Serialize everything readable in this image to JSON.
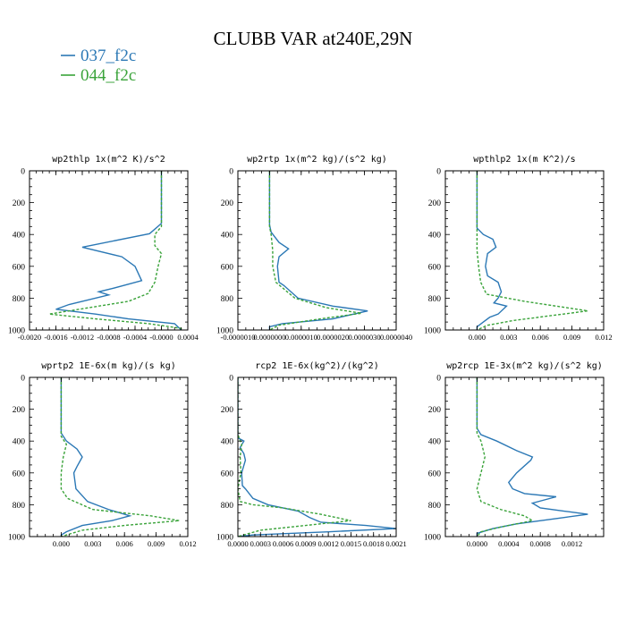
{
  "title": "CLUBB VAR at240E,29N",
  "colors": {
    "blue": "#2b78b5",
    "green": "#3aa33a"
  },
  "legend": [
    {
      "label": "037_f2c",
      "color": "#2b78b5",
      "dash": "solid"
    },
    {
      "label": "044_f2c",
      "color": "#3aa33a",
      "dash": "dashed"
    }
  ],
  "chart_data": [
    {
      "type": "line",
      "title": "wp2thlp  1x(m^2 K)/s^2",
      "xlim": [
        -0.002,
        0.0004
      ],
      "ylim": [
        1000,
        0
      ],
      "xticks": [
        -0.002,
        -0.0016,
        -0.0012,
        -0.0008,
        -0.0004,
        0.0,
        0.0004
      ],
      "xtick_labels": [
        "-0.0020",
        "-0.0016",
        "-0.0012",
        "-0.0008",
        "-0.0004",
        "-0.0000",
        "0.0004"
      ],
      "yticks": [
        0,
        200,
        400,
        600,
        800,
        1000
      ],
      "ytick_labels": [
        "0",
        "200",
        "400",
        "600",
        "800",
        "1000"
      ],
      "series": [
        {
          "name": "037_f2c",
          "points": [
            [
              0,
              0
            ],
            [
              0,
              330
            ],
            [
              -4e-05,
              345
            ],
            [
              -0.00018,
              395
            ],
            [
              -0.0012,
              480
            ],
            [
              -0.0006,
              540
            ],
            [
              -0.0004,
              600
            ],
            [
              -0.0003,
              690
            ],
            [
              -0.00075,
              740
            ],
            [
              -0.00095,
              760
            ],
            [
              -0.0008,
              780
            ],
            [
              -0.0014,
              840
            ],
            [
              -0.0016,
              870
            ],
            [
              -0.001,
              900
            ],
            [
              -0.0005,
              930
            ],
            [
              0.0002,
              960
            ],
            [
              0.0003,
              1000
            ]
          ]
        },
        {
          "name": "044_f2c",
          "points": [
            [
              0,
              0
            ],
            [
              0,
              350
            ],
            [
              -0.0001,
              400
            ],
            [
              -0.0001,
              470
            ],
            [
              0,
              520
            ],
            [
              -5e-05,
              600
            ],
            [
              -0.0001,
              700
            ],
            [
              -0.0002,
              770
            ],
            [
              -0.0005,
              820
            ],
            [
              -0.0011,
              860
            ],
            [
              -0.0017,
              900
            ],
            [
              -0.001,
              930
            ],
            [
              -0.0002,
              960
            ],
            [
              0.0003,
              990
            ],
            [
              0.0003,
              1000
            ]
          ]
        }
      ]
    },
    {
      "type": "line",
      "title": "wp2rtp  1x(m^2 kg)/(s^2 kg)",
      "xlim": [
        -1e-06,
        4e-06
      ],
      "ylim": [
        1000,
        0
      ],
      "xticks": [
        -1e-06,
        0.0,
        1e-06,
        2e-06,
        3e-06,
        4e-06
      ],
      "xtick_labels": [
        "-0.0000010",
        "0.0000000",
        "0.0000010",
        "0.0000020",
        "0.0000030",
        "0.0000040"
      ],
      "yticks": [
        0,
        200,
        400,
        600,
        800,
        1000
      ],
      "ytick_labels": [
        "0",
        "200",
        "400",
        "600",
        "800",
        "1000"
      ],
      "series": [
        {
          "name": "037_f2c",
          "points": [
            [
              0,
              0
            ],
            [
              0,
              340
            ],
            [
              5e-08,
              385
            ],
            [
              3e-07,
              450
            ],
            [
              6e-07,
              490
            ],
            [
              3e-07,
              540
            ],
            [
              2.5e-07,
              600
            ],
            [
              3e-07,
              700
            ],
            [
              4.5e-07,
              720
            ],
            [
              9e-07,
              800
            ],
            [
              2e-06,
              850
            ],
            [
              3.1e-06,
              880
            ],
            [
              2e-06,
              930
            ],
            [
              4e-07,
              960
            ],
            [
              0,
              980
            ],
            [
              0,
              1000
            ]
          ]
        },
        {
          "name": "044_f2c",
          "points": [
            [
              0,
              0
            ],
            [
              0,
              350
            ],
            [
              5e-08,
              400
            ],
            [
              1e-07,
              500
            ],
            [
              1e-07,
              600
            ],
            [
              2e-07,
              700
            ],
            [
              8e-07,
              800
            ],
            [
              1.8e-06,
              860
            ],
            [
              2.9e-06,
              895
            ],
            [
              1.6e-06,
              930
            ],
            [
              3e-07,
              970
            ],
            [
              0,
              1000
            ]
          ]
        }
      ]
    },
    {
      "type": "line",
      "title": "wpthlp2  1x(m K^2)/s",
      "xlim": [
        -0.003,
        0.012
      ],
      "ylim": [
        1000,
        0
      ],
      "xticks": [
        0.0,
        0.003,
        0.006,
        0.009,
        0.012
      ],
      "xtick_labels": [
        "0.000",
        "0.003",
        "0.006",
        "0.009",
        "0.012"
      ],
      "yticks": [
        0,
        200,
        400,
        600,
        800,
        1000
      ],
      "ytick_labels": [
        "0",
        "200",
        "400",
        "600",
        "800",
        "1000"
      ],
      "series": [
        {
          "name": "037_f2c",
          "points": [
            [
              0,
              0
            ],
            [
              0,
              360
            ],
            [
              0.0006,
              400
            ],
            [
              0.0015,
              430
            ],
            [
              0.0018,
              480
            ],
            [
              0.001,
              520
            ],
            [
              0.0008,
              600
            ],
            [
              0.001,
              660
            ],
            [
              0.002,
              700
            ],
            [
              0.0023,
              760
            ],
            [
              0.002,
              800
            ],
            [
              0.0016,
              830
            ],
            [
              0.0028,
              850
            ],
            [
              0.002,
              900
            ],
            [
              0.0012,
              920
            ],
            [
              0.0006,
              950
            ],
            [
              0,
              980
            ],
            [
              0,
              1000
            ]
          ]
        },
        {
          "name": "044_f2c",
          "points": [
            [
              0,
              0
            ],
            [
              0,
              500
            ],
            [
              0.00015,
              600
            ],
            [
              0.00035,
              700
            ],
            [
              0.0009,
              775
            ],
            [
              0.0045,
              820
            ],
            [
              0.0105,
              880
            ],
            [
              0.007,
              910
            ],
            [
              0.0035,
              940
            ],
            [
              0.001,
              970
            ],
            [
              0,
              1000
            ]
          ]
        }
      ]
    },
    {
      "type": "line",
      "title": "wprtp2  1E-6x(m kg)/(s kg)",
      "xlim": [
        -0.003,
        0.012
      ],
      "ylim": [
        1000,
        0
      ],
      "xticks": [
        0.0,
        0.003,
        0.006,
        0.009,
        0.012
      ],
      "xtick_labels": [
        "0.000",
        "0.003",
        "0.006",
        "0.009",
        "0.012"
      ],
      "yticks": [
        0,
        200,
        400,
        600,
        800,
        1000
      ],
      "ytick_labels": [
        "0",
        "200",
        "400",
        "600",
        "800",
        "1000"
      ],
      "series": [
        {
          "name": "037_f2c",
          "points": [
            [
              0,
              0
            ],
            [
              0,
              350
            ],
            [
              0.0005,
              400
            ],
            [
              0.0015,
              450
            ],
            [
              0.002,
              500
            ],
            [
              0.0015,
              560
            ],
            [
              0.0012,
              600
            ],
            [
              0.0014,
              700
            ],
            [
              0.0025,
              780
            ],
            [
              0.0045,
              830
            ],
            [
              0.0065,
              870
            ],
            [
              0.0048,
              900
            ],
            [
              0.002,
              930
            ],
            [
              0.0005,
              970
            ],
            [
              0,
              990
            ],
            [
              0,
              1000
            ]
          ]
        },
        {
          "name": "044_f2c",
          "points": [
            [
              0,
              0
            ],
            [
              0,
              370
            ],
            [
              0.0005,
              420
            ],
            [
              0.0002,
              500
            ],
            [
              0,
              600
            ],
            [
              0,
              700
            ],
            [
              0.0006,
              760
            ],
            [
              0.003,
              830
            ],
            [
              0.0085,
              870
            ],
            [
              0.0112,
              900
            ],
            [
              0.006,
              930
            ],
            [
              0.002,
              960
            ],
            [
              0,
              1000
            ]
          ]
        }
      ]
    },
    {
      "type": "line",
      "title": "rcp2  1E-6x(kg^2)/(kg^2)",
      "xlim": [
        0.0,
        0.0021
      ],
      "ylim": [
        1000,
        0
      ],
      "xticks": [
        0.0,
        0.0003,
        0.0006,
        0.0009,
        0.0012,
        0.0015,
        0.0018,
        0.0021
      ],
      "xtick_labels": [
        "0.0000",
        "0.0003",
        "0.0006",
        "0.0009",
        "0.0012",
        "0.0015",
        "0.0018",
        "0.0021"
      ],
      "yticks": [
        0,
        200,
        400,
        600,
        800,
        1000
      ],
      "ytick_labels": [
        "0",
        "200",
        "400",
        "600",
        "800",
        "1000"
      ],
      "series": [
        {
          "name": "037_f2c",
          "points": [
            [
              0,
              0
            ],
            [
              0,
              380
            ],
            [
              8e-05,
              400
            ],
            [
              3e-05,
              440
            ],
            [
              8e-05,
              480
            ],
            [
              0.0001,
              520
            ],
            [
              5e-05,
              600
            ],
            [
              6e-05,
              680
            ],
            [
              0.0001,
              700
            ],
            [
              0.0002,
              760
            ],
            [
              0.0004,
              800
            ],
            [
              0.0008,
              840
            ],
            [
              0.00095,
              880
            ],
            [
              0.0011,
              910
            ],
            [
              0.0017,
              930
            ],
            [
              0.0021,
              950
            ],
            [
              0.0012,
              970
            ],
            [
              0.0002,
              990
            ],
            [
              0,
              1000
            ]
          ]
        },
        {
          "name": "044_f2c",
          "points": [
            [
              0,
              0
            ],
            [
              0,
              360
            ],
            [
              5e-05,
              420
            ],
            [
              3e-05,
              500
            ],
            [
              4e-05,
              600
            ],
            [
              0,
              700
            ],
            [
              3e-05,
              780
            ],
            [
              0.0002,
              800
            ],
            [
              0.0006,
              820
            ],
            [
              0.0011,
              860
            ],
            [
              0.0015,
              900
            ],
            [
              0.0009,
              930
            ],
            [
              0.0003,
              960
            ],
            [
              0,
              1000
            ]
          ]
        }
      ]
    },
    {
      "type": "line",
      "title": "wp2rcp  1E-3x(m^2 kg)/(s^2 kg)",
      "xlim": [
        -0.0004,
        0.0016
      ],
      "ylim": [
        1000,
        0
      ],
      "xticks": [
        0.0,
        0.0004,
        0.0008,
        0.0012
      ],
      "xtick_labels": [
        "0.0000",
        "0.0004",
        "0.0008",
        "0.0012"
      ],
      "yticks": [
        0,
        200,
        400,
        600,
        800,
        1000
      ],
      "ytick_labels": [
        "0",
        "200",
        "400",
        "600",
        "800",
        "1000"
      ],
      "series": [
        {
          "name": "037_f2c",
          "points": [
            [
              0,
              0
            ],
            [
              0,
              320
            ],
            [
              5e-05,
              360
            ],
            [
              0.00025,
              400
            ],
            [
              0.0005,
              460
            ],
            [
              0.0007,
              500
            ],
            [
              0.00068,
              520
            ],
            [
              0.0005,
              600
            ],
            [
              0.0004,
              660
            ],
            [
              0.00045,
              700
            ],
            [
              0.0006,
              730
            ],
            [
              0.001,
              750
            ],
            [
              0.0007,
              790
            ],
            [
              0.0008,
              820
            ],
            [
              0.0011,
              840
            ],
            [
              0.0014,
              860
            ],
            [
              0.0011,
              880
            ],
            [
              0.0005,
              920
            ],
            [
              0.0002,
              950
            ],
            [
              0,
              980
            ],
            [
              0,
              1000
            ]
          ]
        },
        {
          "name": "044_f2c",
          "points": [
            [
              0,
              0
            ],
            [
              0,
              350
            ],
            [
              5e-05,
              400
            ],
            [
              0.0001,
              500
            ],
            [
              5e-05,
              600
            ],
            [
              0,
              700
            ],
            [
              5e-05,
              780
            ],
            [
              0.0003,
              830
            ],
            [
              0.0006,
              870
            ],
            [
              0.0007,
              900
            ],
            [
              0.0003,
              940
            ],
            [
              5e-05,
              970
            ],
            [
              0,
              1000
            ]
          ]
        }
      ]
    }
  ]
}
